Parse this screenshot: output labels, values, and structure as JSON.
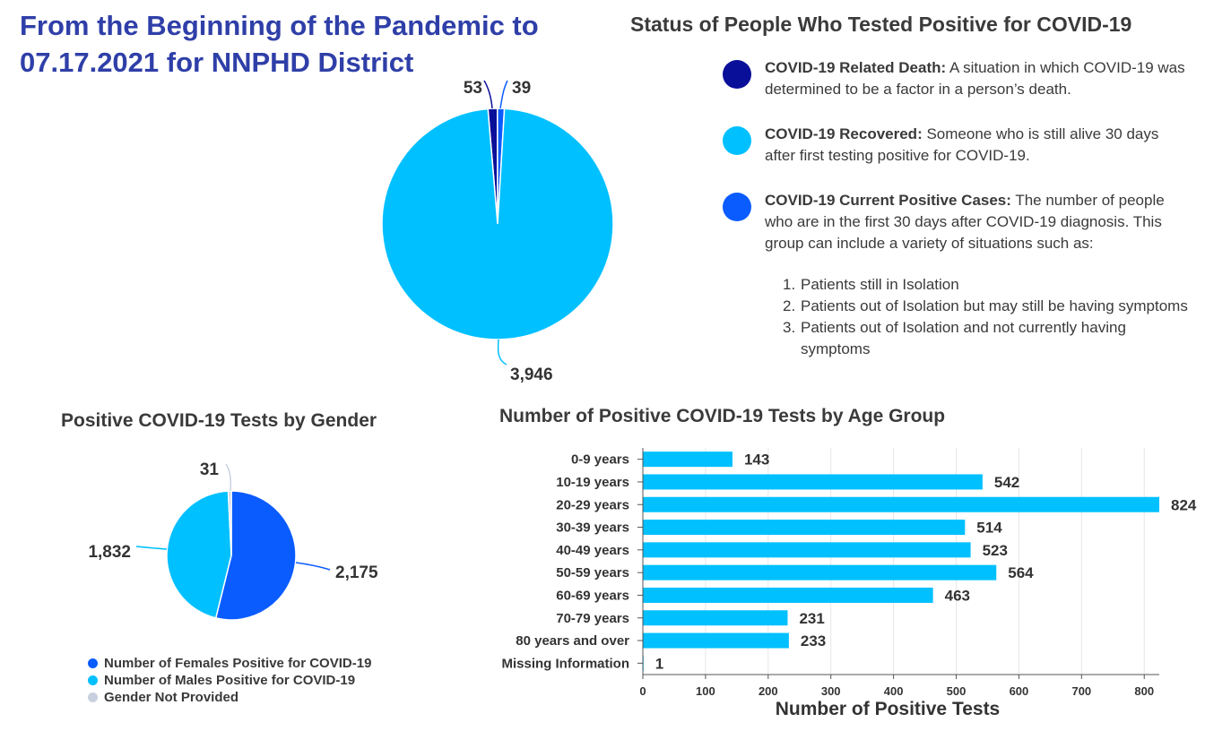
{
  "header": {
    "title": "From the Beginning of the Pandemic to 07.17.2021 for NNPHD District"
  },
  "status_panel": {
    "title": "Status of People Who Tested Positive for COVID-19",
    "items": [
      {
        "term": "COVID-19 Related Death:",
        "text": " A situation in which COVID-19 was determined to be a factor in a person’s death.",
        "color": "#0a0f99"
      },
      {
        "term": "COVID-19 Recovered:",
        "text": " Someone who is still alive 30 days after first testing positive for COVID-19.",
        "color": "#00c0ff"
      },
      {
        "term": "COVID-19 Current Positive Cases:",
        "text": " The number of people who are in the first 30 days after COVID-19 diagnosis.  This group can include a variety of situations such as:",
        "color": "#0a5cff"
      }
    ],
    "list": [
      {
        "num": "1.",
        "text": "Patients still in Isolation"
      },
      {
        "num": "2.",
        "text": "Patients out of Isolation but may still be having symptoms"
      },
      {
        "num": "3.",
        "text": "Patients out of Isolation and not currently having symptoms"
      }
    ]
  },
  "gender_panel": {
    "title": "Positive COVID-19 Tests by Gender",
    "legend": [
      {
        "label": "Number of Females Positive for COVID-19",
        "color": "#0a5cff"
      },
      {
        "label": "Number of Males Positive for COVID-19",
        "color": "#00c0ff"
      },
      {
        "label": "Gender Not Provided",
        "color": "#c8d0e0"
      }
    ]
  },
  "age_panel": {
    "title": "Number of Positive COVID-19 Tests by Age Group"
  },
  "chart_data": [
    {
      "type": "pie",
      "title": "Status of People Who Tested Positive for COVID-19",
      "slices": [
        {
          "label": "COVID-19 Related Death",
          "value": 53,
          "display": "53",
          "color": "#0a0f99"
        },
        {
          "label": "COVID-19 Current Positive Cases",
          "value": 39,
          "display": "39",
          "color": "#0a5cff"
        },
        {
          "label": "COVID-19 Recovered",
          "value": 3946,
          "display": "3,946",
          "color": "#00c0ff"
        }
      ]
    },
    {
      "type": "pie",
      "title": "Positive COVID-19 Tests by Gender",
      "slices": [
        {
          "label": "Number of Females Positive for COVID-19",
          "value": 2175,
          "display": "2,175",
          "color": "#0a5cff"
        },
        {
          "label": "Number of Males Positive for COVID-19",
          "value": 1832,
          "display": "1,832",
          "color": "#00c0ff"
        },
        {
          "label": "Gender Not Provided",
          "value": 31,
          "display": "31",
          "color": "#c8d0e0"
        }
      ]
    },
    {
      "type": "bar",
      "orientation": "horizontal",
      "title": "Number of Positive COVID-19 Tests by Age Group",
      "xlabel": "Number of Positive Tests",
      "ylabel": "",
      "categories": [
        "0-9 years",
        "10-19 years",
        "20-29 years",
        "30-39 years",
        "40-49 years",
        "50-59 years",
        "60-69 years",
        "70-79 years",
        "80 years and over",
        "Missing Information"
      ],
      "values": [
        143,
        542,
        824,
        514,
        523,
        564,
        463,
        231,
        233,
        1
      ],
      "xlim": [
        0,
        824
      ],
      "xticks": [
        0,
        100,
        200,
        300,
        400,
        500,
        600,
        700,
        800
      ],
      "grid": true,
      "color": "#00c0ff"
    }
  ]
}
